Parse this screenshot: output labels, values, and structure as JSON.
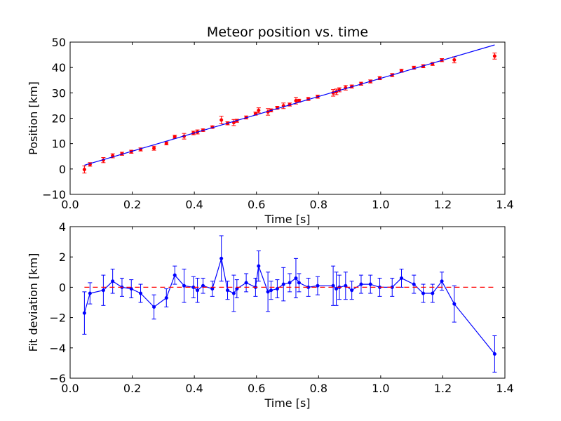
{
  "colors": {
    "fit_line": "#0000ff",
    "measurements": "#ff0000",
    "zero_line": "#ff0000",
    "axes": "#000000"
  },
  "chart_data": [
    {
      "type": "scatter",
      "title": "Meteor position vs. time",
      "xlabel": "Time [s]",
      "ylabel": "Position [km]",
      "xlim": [
        0.0,
        1.4
      ],
      "ylim": [
        -10,
        50
      ],
      "xticks": [
        "0.0",
        "0.2",
        "0.4",
        "0.6",
        "0.8",
        "1.0",
        "1.2",
        "1.4"
      ],
      "yticks": [
        "−10",
        "0",
        "10",
        "20",
        "30",
        "40",
        "50"
      ],
      "grid": false,
      "series": [
        {
          "kind": "errorbar-points",
          "color": "#ff0000",
          "x": [
            0.046,
            0.064,
            0.107,
            0.137,
            0.167,
            0.197,
            0.227,
            0.27,
            0.31,
            0.337,
            0.367,
            0.397,
            0.41,
            0.428,
            0.458,
            0.487,
            0.507,
            0.527,
            0.537,
            0.567,
            0.597,
            0.607,
            0.637,
            0.647,
            0.667,
            0.687,
            0.707,
            0.727,
            0.737,
            0.767,
            0.797,
            0.847,
            0.857,
            0.867,
            0.887,
            0.907,
            0.937,
            0.967,
            0.997,
            1.037,
            1.067,
            1.107,
            1.137,
            1.167,
            1.197,
            1.237,
            1.367
          ],
          "y": [
            -0.2,
            1.8,
            3.5,
            5.2,
            6.0,
            6.8,
            7.7,
            8.2,
            10.1,
            12.7,
            12.9,
            14.2,
            14.6,
            15.3,
            16.5,
            19.3,
            18.0,
            18.3,
            19.0,
            20.3,
            21.8,
            23.1,
            22.5,
            23.1,
            24.1,
            24.9,
            25.4,
            26.9,
            26.9,
            27.6,
            28.5,
            30.0,
            30.4,
            31.2,
            32.0,
            32.5,
            33.6,
            34.5,
            35.8,
            37.0,
            38.7,
            39.9,
            40.5,
            41.4,
            42.9,
            43.0,
            44.5
          ],
          "err": [
            1.4,
            0.7,
            1.0,
            0.8,
            0.6,
            0.6,
            0.6,
            0.8,
            0.6,
            0.6,
            1.1,
            0.7,
            0.8,
            0.5,
            0.5,
            1.5,
            0.6,
            1.2,
            0.6,
            0.6,
            0.6,
            1.0,
            1.3,
            0.6,
            0.6,
            1.1,
            0.6,
            1.3,
            0.6,
            0.6,
            0.6,
            1.3,
            1.1,
            0.8,
            0.9,
            0.6,
            0.6,
            0.6,
            0.6,
            0.6,
            0.6,
            0.6,
            0.6,
            0.6,
            0.6,
            1.2,
            1.2
          ]
        },
        {
          "kind": "line",
          "color": "#0000ff",
          "x": [
            0.046,
            1.367
          ],
          "y": [
            1.5,
            48.9
          ]
        }
      ]
    },
    {
      "type": "line",
      "xlabel": "Time [s]",
      "ylabel": "Fit deviation [km]",
      "xlim": [
        0.0,
        1.4
      ],
      "ylim": [
        -6,
        4
      ],
      "xticks": [
        "0.0",
        "0.2",
        "0.4",
        "0.6",
        "0.8",
        "1.0",
        "1.2",
        "1.4"
      ],
      "yticks": [
        "−6",
        "−4",
        "−2",
        "0",
        "2",
        "4"
      ],
      "grid": false,
      "series": [
        {
          "kind": "errorbar-line",
          "color": "#0000ff",
          "x": [
            0.046,
            0.064,
            0.107,
            0.137,
            0.167,
            0.197,
            0.227,
            0.27,
            0.31,
            0.337,
            0.367,
            0.397,
            0.41,
            0.428,
            0.458,
            0.487,
            0.507,
            0.527,
            0.537,
            0.567,
            0.597,
            0.607,
            0.637,
            0.647,
            0.667,
            0.687,
            0.707,
            0.727,
            0.737,
            0.767,
            0.797,
            0.847,
            0.857,
            0.867,
            0.887,
            0.907,
            0.937,
            0.967,
            0.997,
            1.037,
            1.067,
            1.107,
            1.137,
            1.167,
            1.197,
            1.237,
            1.367
          ],
          "y": [
            -1.7,
            -0.4,
            -0.2,
            0.4,
            0.0,
            -0.1,
            -0.4,
            -1.3,
            -0.7,
            0.8,
            0.1,
            0.0,
            -0.2,
            0.1,
            -0.1,
            1.9,
            -0.2,
            -0.4,
            -0.1,
            0.3,
            0.0,
            1.4,
            -0.3,
            -0.2,
            -0.1,
            0.2,
            0.3,
            0.6,
            0.3,
            0.0,
            0.1,
            0.1,
            -0.1,
            0.0,
            0.1,
            -0.2,
            0.2,
            0.2,
            0.0,
            0.0,
            0.6,
            0.2,
            -0.4,
            -0.4,
            0.4,
            -1.1,
            -4.4
          ],
          "err": [
            1.4,
            0.7,
            1.0,
            0.8,
            0.6,
            0.6,
            0.6,
            0.8,
            0.6,
            0.6,
            1.1,
            0.7,
            0.8,
            0.5,
            0.5,
            1.5,
            0.6,
            1.2,
            0.6,
            0.6,
            0.6,
            1.0,
            1.3,
            0.6,
            0.6,
            1.1,
            0.6,
            1.3,
            0.6,
            0.6,
            0.6,
            1.3,
            1.1,
            0.8,
            0.9,
            0.6,
            0.6,
            0.6,
            0.6,
            0.6,
            0.6,
            0.6,
            0.6,
            0.6,
            0.6,
            1.2,
            1.2
          ]
        },
        {
          "kind": "dashed-line",
          "color": "#ff0000",
          "x": [
            0.046,
            1.367
          ],
          "y": [
            0,
            0
          ]
        }
      ]
    }
  ]
}
